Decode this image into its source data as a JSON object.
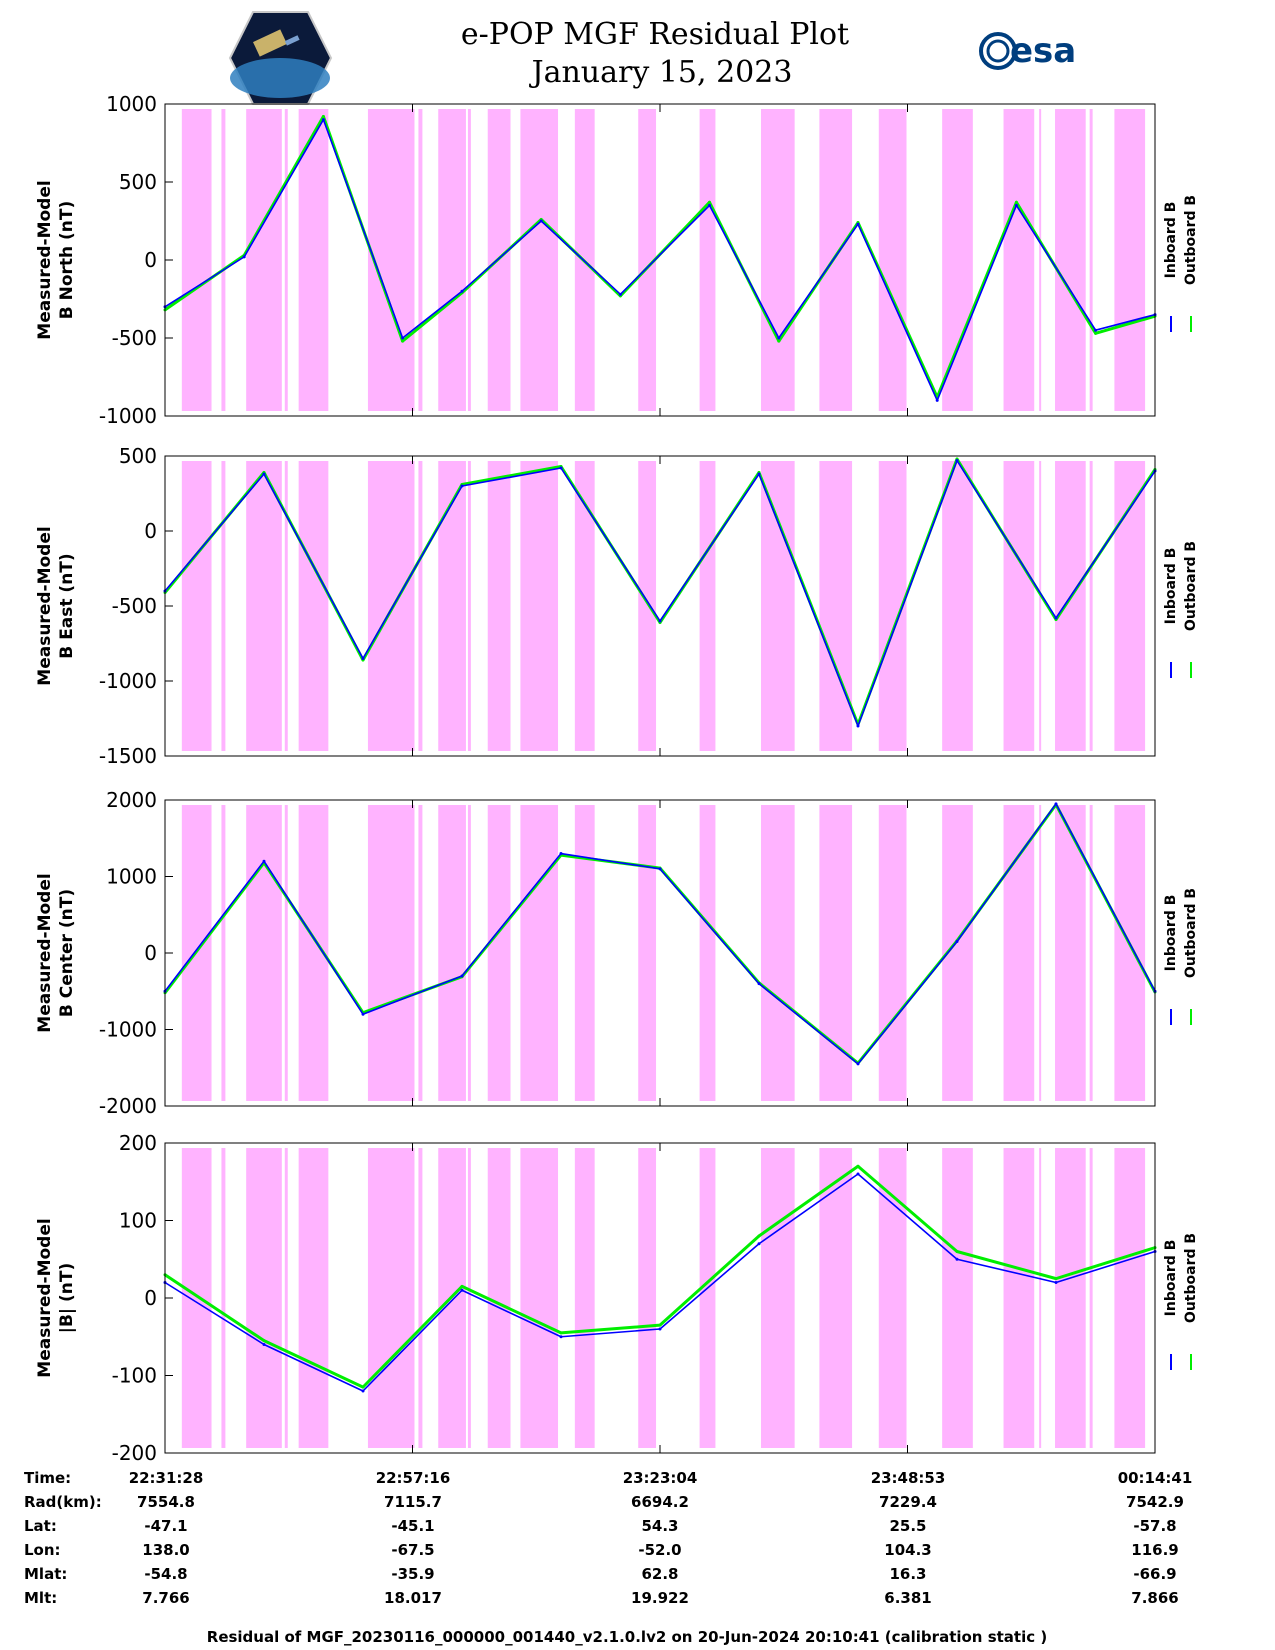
{
  "header": {
    "title_line1": "e-POP MGF Residual Plot",
    "title_line2": "January 15, 2023",
    "logo_left": "cassiope-mission-logo",
    "logo_right_text": "esa"
  },
  "colors": {
    "inboard": "#0000ff",
    "outboard": "#00ee00",
    "shade": "#ffb3ff",
    "axis": "#000000"
  },
  "chart_data": [
    {
      "type": "line",
      "ylabel_line1": "Measured-Model",
      "ylabel_line2": "B North (nT)",
      "ylim": [
        -1000,
        1000
      ],
      "yticks": [
        "1000",
        "500",
        "0",
        "-500",
        "-1000"
      ],
      "legend": [
        "Inboard B",
        "Outboard B"
      ],
      "series": [
        {
          "name": "Inboard B",
          "x": [
            0.0,
            0.08,
            0.16,
            0.24,
            0.3,
            0.38,
            0.46,
            0.55,
            0.62,
            0.7,
            0.78,
            0.86,
            0.94,
            1.0
          ],
          "y": [
            -300,
            20,
            900,
            -500,
            -200,
            250,
            -220,
            350,
            -500,
            230,
            -900,
            350,
            -450,
            -350
          ]
        },
        {
          "name": "Outboard B",
          "x": [
            0.0,
            0.08,
            0.16,
            0.24,
            0.3,
            0.38,
            0.46,
            0.55,
            0.62,
            0.7,
            0.78,
            0.86,
            0.94,
            1.0
          ],
          "y": [
            -320,
            30,
            920,
            -520,
            -210,
            260,
            -230,
            370,
            -520,
            240,
            -880,
            370,
            -470,
            -360
          ]
        }
      ]
    },
    {
      "type": "line",
      "ylabel_line1": "Measured-Model",
      "ylabel_line2": "B East (nT)",
      "ylim": [
        -1500,
        500
      ],
      "yticks": [
        "500",
        "0",
        "-500",
        "-1000",
        "-1500"
      ],
      "legend": [
        "Inboard B",
        "Outboard B"
      ],
      "series": [
        {
          "name": "Inboard B",
          "x": [
            0.0,
            0.1,
            0.2,
            0.3,
            0.4,
            0.5,
            0.6,
            0.7,
            0.8,
            0.9,
            1.0
          ],
          "y": [
            -400,
            380,
            -850,
            300,
            420,
            -600,
            380,
            -1300,
            470,
            -580,
            400
          ]
        },
        {
          "name": "Outboard B",
          "x": [
            0.0,
            0.1,
            0.2,
            0.3,
            0.4,
            0.5,
            0.6,
            0.7,
            0.8,
            0.9,
            1.0
          ],
          "y": [
            -410,
            390,
            -860,
            310,
            430,
            -610,
            390,
            -1290,
            480,
            -590,
            410
          ]
        }
      ]
    },
    {
      "type": "line",
      "ylabel_line1": "Measured-Model",
      "ylabel_line2": "B Center (nT)",
      "ylim": [
        -2000,
        2000
      ],
      "yticks": [
        "2000",
        "1000",
        "0",
        "-1000",
        "-2000"
      ],
      "legend": [
        "Inboard B",
        "Outboard B"
      ],
      "series": [
        {
          "name": "Inboard B",
          "x": [
            0.0,
            0.1,
            0.2,
            0.3,
            0.4,
            0.5,
            0.6,
            0.7,
            0.8,
            0.9,
            1.0
          ],
          "y": [
            -500,
            1200,
            -800,
            -300,
            1300,
            1100,
            -400,
            -1450,
            150,
            1950,
            -500
          ]
        },
        {
          "name": "Outboard B",
          "x": [
            0.0,
            0.1,
            0.2,
            0.3,
            0.4,
            0.5,
            0.6,
            0.7,
            0.8,
            0.9,
            1.0
          ],
          "y": [
            -520,
            1180,
            -780,
            -310,
            1280,
            1110,
            -390,
            -1440,
            160,
            1940,
            -510
          ]
        }
      ]
    },
    {
      "type": "line",
      "ylabel_line1": "Measured-Model",
      "ylabel_line2": "|B| (nT)",
      "ylim": [
        -200,
        200
      ],
      "yticks": [
        "200",
        "100",
        "0",
        "-100",
        "-200"
      ],
      "legend": [
        "Inboard B",
        "Outboard B"
      ],
      "series": [
        {
          "name": "Inboard B",
          "x": [
            0.0,
            0.1,
            0.2,
            0.3,
            0.4,
            0.5,
            0.6,
            0.7,
            0.8,
            0.9,
            1.0
          ],
          "y": [
            20,
            -60,
            -120,
            10,
            -50,
            -40,
            70,
            160,
            50,
            20,
            60
          ]
        },
        {
          "name": "Outboard B",
          "x": [
            0.0,
            0.1,
            0.2,
            0.3,
            0.4,
            0.5,
            0.6,
            0.7,
            0.8,
            0.9,
            1.0
          ],
          "y": [
            30,
            -55,
            -115,
            15,
            -45,
            -35,
            80,
            170,
            60,
            25,
            65
          ]
        }
      ]
    }
  ],
  "orbit_table": {
    "row_labels": [
      "Time:",
      "Rad(km):",
      "Lat:",
      "Lon:",
      "Mlat:",
      "Mlt:"
    ],
    "columns": [
      [
        "22:31:28",
        "7554.8",
        "-47.1",
        "138.0",
        "-54.8",
        "7.766"
      ],
      [
        "22:57:16",
        "7115.7",
        "-45.1",
        "-67.5",
        "-35.9",
        "18.017"
      ],
      [
        "23:23:04",
        "6694.2",
        "54.3",
        "-52.0",
        "62.8",
        "19.922"
      ],
      [
        "23:48:53",
        "7229.4",
        "25.5",
        "104.3",
        "16.3",
        "6.381"
      ],
      [
        "00:14:41",
        "7542.9",
        "-57.8",
        "116.9",
        "-66.9",
        "7.866"
      ]
    ]
  },
  "footer": "Residual of MGF_20230116_000000_001440_v2.1.0.lv2 on 20-Jun-2024 20:10:41 (calibration static )"
}
